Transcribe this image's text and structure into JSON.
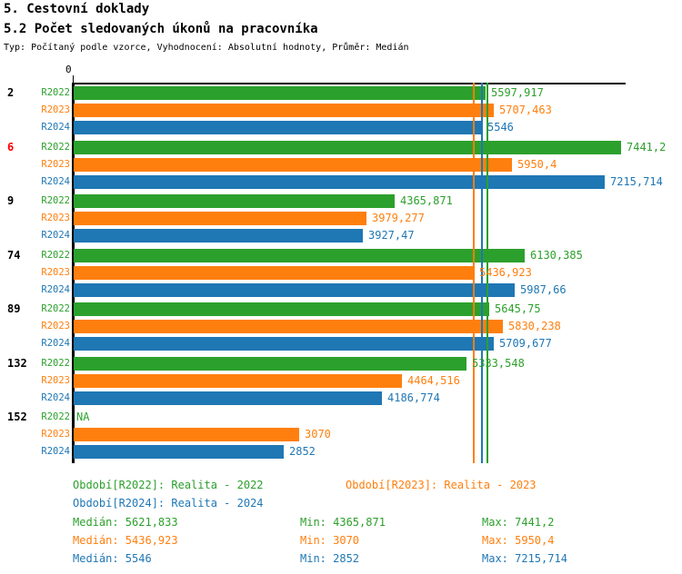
{
  "header": {
    "title1": "5. Cestovní doklady",
    "title2": "5.2 Počet sledovaných úkonů na pracovníka",
    "subtitle": "Typ: Počítaný podle vzorce, Vyhodnocení: Absolutní hodnoty, Průměr: Medián"
  },
  "colors": {
    "r2022": "#2ca02c",
    "r2023": "#ff7f0e",
    "r2024": "#1f77b4",
    "highlight": "#ff0000",
    "axis": "#000000"
  },
  "chart_data": {
    "type": "bar",
    "orientation": "horizontal",
    "title": "5.2 Počet sledovaných úkonů na pracovníka",
    "axis": {
      "origin_label": "0",
      "xlim": [
        0,
        7500
      ]
    },
    "series_names": [
      "R2022",
      "R2023",
      "R2024"
    ],
    "groups": [
      {
        "label": "2",
        "highlighted": false,
        "values": [
          5597.917,
          5707.463,
          5546
        ],
        "value_labels": [
          "5597,917",
          "5707,463",
          "5546"
        ]
      },
      {
        "label": "6",
        "highlighted": true,
        "values": [
          7441.2,
          5950.4,
          7215.714
        ],
        "value_labels": [
          "7441,2",
          "5950,4",
          "7215,714"
        ]
      },
      {
        "label": "9",
        "highlighted": false,
        "values": [
          4365.871,
          3979.277,
          3927.47
        ],
        "value_labels": [
          "4365,871",
          "3979,277",
          "3927,47"
        ]
      },
      {
        "label": "74",
        "highlighted": false,
        "values": [
          6130.385,
          5436.923,
          5987.66
        ],
        "value_labels": [
          "6130,385",
          "5436,923",
          "5987,66"
        ]
      },
      {
        "label": "89",
        "highlighted": false,
        "values": [
          5645.75,
          5830.238,
          5709.677
        ],
        "value_labels": [
          "5645,75",
          "5830,238",
          "5709,677"
        ]
      },
      {
        "label": "132",
        "highlighted": false,
        "values": [
          5333.548,
          4464.516,
          4186.774
        ],
        "value_labels": [
          "5333,548",
          "4464,516",
          "4186,774"
        ]
      },
      {
        "label": "152",
        "highlighted": false,
        "values": [
          null,
          3070,
          2852
        ],
        "value_labels": [
          "NA",
          "3070",
          "2852"
        ]
      }
    ],
    "median_lines": [
      5621.833,
      5436.923,
      5546
    ]
  },
  "legend": [
    {
      "label": "Období[R2022]: Realita - 2022"
    },
    {
      "label": "Období[R2023]: Realita - 2023"
    },
    {
      "label": "Období[R2024]: Realita - 2024"
    }
  ],
  "stats": [
    {
      "median": "Medián: 5621,833",
      "min": "Min: 4365,871",
      "max": "Max: 7441,2"
    },
    {
      "median": "Medián: 5436,923",
      "min": "Min: 3070",
      "max": "Max: 5950,4"
    },
    {
      "median": "Medián: 5546",
      "min": "Min: 2852",
      "max": "Max: 7215,714"
    }
  ]
}
